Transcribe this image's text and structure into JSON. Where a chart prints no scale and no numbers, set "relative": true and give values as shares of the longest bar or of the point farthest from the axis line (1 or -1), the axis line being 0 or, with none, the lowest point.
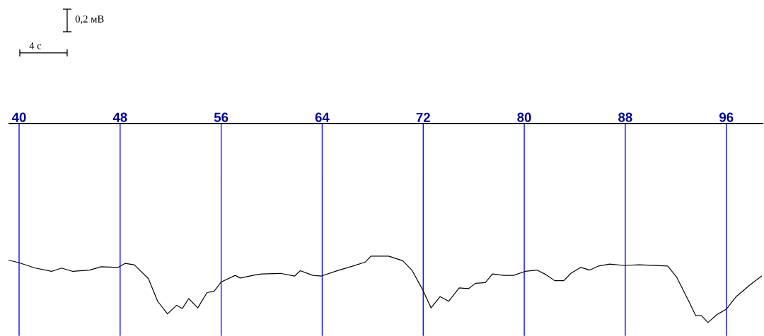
{
  "chart_data": {
    "type": "line",
    "relative": true,
    "grid": "x",
    "color": "#000000",
    "annotations": [
      "0,2 мВ",
      "4 с"
    ],
    "xlim": [
      39.16,
      98.94
    ],
    "xticks": [
      40,
      48,
      56,
      64,
      72,
      80,
      88,
      96
    ],
    "x": [
      39.16,
      40.0,
      41.29,
      42.57,
      43.36,
      44.25,
      45.59,
      46.49,
      47.83,
      48.39,
      49.12,
      50.24,
      50.97,
      51.75,
      52.48,
      52.92,
      53.43,
      54.15,
      54.88,
      55.44,
      56.0,
      57.12,
      57.51,
      58.8,
      59.19,
      60.7,
      61.82,
      62.27,
      63.27,
      63.94,
      65.34,
      66.07,
      67.41,
      67.86,
      69.26,
      70.38,
      71.1,
      71.94,
      72.62,
      73.34,
      74.01,
      74.85,
      75.58,
      76.14,
      76.92,
      77.48,
      78.38,
      79.16,
      80.06,
      81.01,
      81.73,
      82.41,
      83.13,
      83.69,
      84.48,
      85.2,
      85.87,
      86.77,
      87.89,
      89.12,
      91.36,
      92.08,
      93.03,
      93.59,
      94.04,
      94.55,
      95.27,
      96.0,
      96.78,
      97.9,
      98.8
    ],
    "values": [
      0.94,
      0.9,
      0.82,
      0.77,
      0.82,
      0.77,
      0.79,
      0.84,
      0.83,
      0.89,
      0.87,
      0.66,
      0.32,
      0.13,
      0.26,
      0.21,
      0.36,
      0.22,
      0.45,
      0.47,
      0.61,
      0.71,
      0.67,
      0.72,
      0.73,
      0.74,
      0.7,
      0.78,
      0.71,
      0.7,
      0.79,
      0.83,
      0.91,
      1.0,
      1.0,
      0.93,
      0.79,
      0.5,
      0.22,
      0.39,
      0.32,
      0.52,
      0.51,
      0.59,
      0.6,
      0.73,
      0.71,
      0.71,
      0.77,
      0.79,
      0.72,
      0.63,
      0.63,
      0.74,
      0.83,
      0.79,
      0.85,
      0.88,
      0.86,
      0.87,
      0.85,
      0.68,
      0.32,
      0.1,
      0.1,
      0.0,
      0.12,
      0.2,
      0.39,
      0.57,
      0.7
    ]
  }
}
